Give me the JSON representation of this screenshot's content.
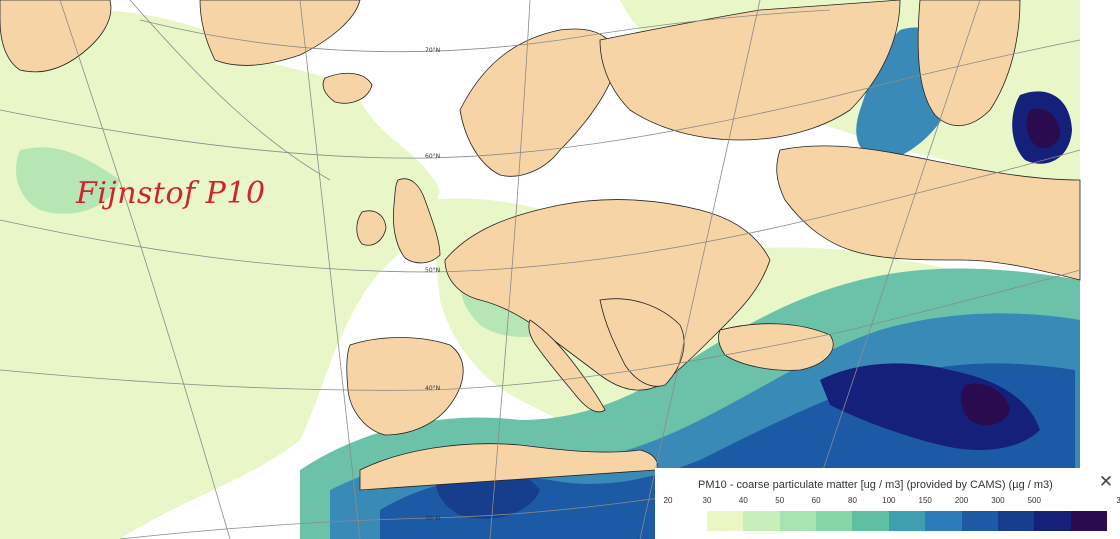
{
  "title": "Fijnstof P10",
  "legend": {
    "title": "PM10 - coarse particulate matter [ug / m3] (provided by CAMS) (µg / m3)",
    "close_label": "✕",
    "ticks": [
      "20",
      "30",
      "40",
      "50",
      "60",
      "80",
      "100",
      "150",
      "200",
      "300",
      "500",
      "3"
    ],
    "colors": [
      "#eaf6c4",
      "#c8eebb",
      "#a8e3b4",
      "#86d6a9",
      "#5fbfa1",
      "#3d9fb0",
      "#2a7db8",
      "#1d5aa6",
      "#173d8d",
      "#14207a",
      "#2b0b4f"
    ]
  },
  "grid_labels": [
    "70°N",
    "60°N",
    "50°N",
    "40°N",
    "30°N"
  ],
  "colors": {
    "land": "#f7d4a6",
    "background": "#ffffff",
    "title_red": "#d2232a"
  }
}
